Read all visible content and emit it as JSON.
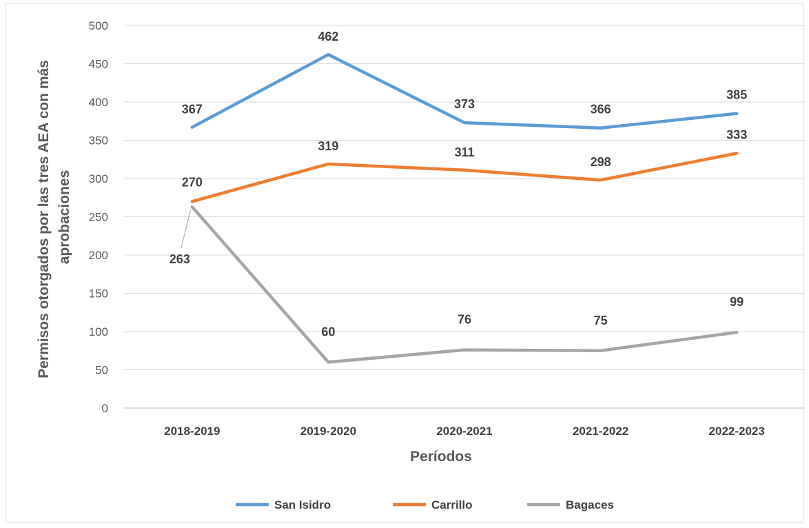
{
  "chart_data": {
    "type": "line",
    "categories": [
      "2018-2019",
      "2019-2020",
      "2020-2021",
      "2021-2022",
      "2022-2023"
    ],
    "series": [
      {
        "name": "San Isidro",
        "values": [
          367,
          462,
          373,
          366,
          385
        ],
        "color": "#5b9bd5"
      },
      {
        "name": "Carrillo",
        "values": [
          270,
          319,
          311,
          298,
          333
        ],
        "color": "#ed7d31"
      },
      {
        "name": "Bagaces",
        "values": [
          263,
          60,
          76,
          75,
          99
        ],
        "color": "#a5a5a5"
      }
    ],
    "xlabel": "Períodos",
    "ylabel_lines": [
      "Permisos otorgados por las tres AEA con más",
      "aprobaciones"
    ],
    "ylim": [
      0,
      500
    ],
    "yticks": [
      "0",
      "50",
      "100",
      "150",
      "200",
      "250",
      "300",
      "350",
      "400",
      "450",
      "500"
    ],
    "grid": true,
    "legend_position": "bottom"
  }
}
